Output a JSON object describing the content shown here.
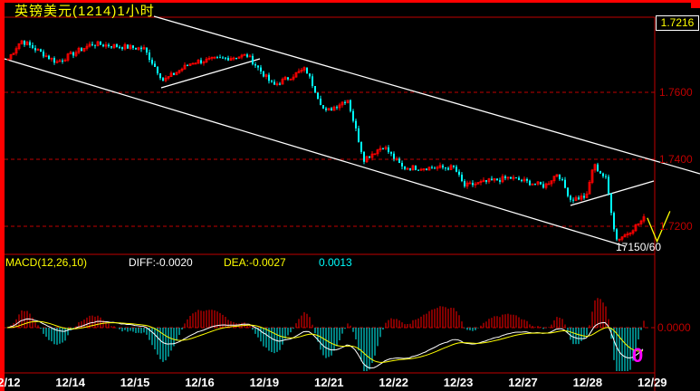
{
  "header": {
    "title": "英镑美元(1214)1小时",
    "last_price": "1.7216"
  },
  "colors": {
    "up": "#ff0000",
    "down": "#00ffff",
    "grid": "#c00000",
    "dea": "#ffff00",
    "diff": "#ffffff",
    "annotation": "#ff00ff"
  },
  "macd": {
    "label": "MACD(12,26,10)",
    "diff": "DIFF:-0.0020",
    "dea": "DEA:-0.0027",
    "macd": "0.0013",
    "zero_label": "0.0000"
  },
  "annotation": {
    "low_label": "17150/60",
    "circle_label": "0"
  },
  "chart_data": {
    "type": "candlestick",
    "title": "英镑美元(1214)1小时",
    "y_ticks": [
      "1.7600",
      "1.7400",
      "1.7200"
    ],
    "y_tick_values": [
      1.76,
      1.74,
      1.72
    ],
    "ylim": [
      1.7113,
      1.7827
    ],
    "x_tick_labels": [
      "12/12",
      "12/14",
      "12/15",
      "12/16",
      "12/19",
      "12/21",
      "12/22",
      "12/23",
      "12/27",
      "12/28",
      "12/29"
    ],
    "grid": true,
    "price_path": {
      "day": [
        0,
        0.2,
        0.75,
        1.3,
        2.1,
        2.4,
        2.85,
        3.7,
        4.1,
        4.6,
        4.9,
        5.25,
        5.5,
        5.8,
        6.1,
        6.9,
        7.05,
        7.75,
        8.3,
        8.5,
        8.7,
        8.95,
        9.05,
        9.25,
        9.4,
        9.55,
        9.85
      ],
      "close": [
        1.77,
        1.7755,
        1.769,
        1.7745,
        1.773,
        1.7635,
        1.769,
        1.771,
        1.762,
        1.767,
        1.754,
        1.758,
        1.74,
        1.744,
        1.7375,
        1.7375,
        1.732,
        1.7345,
        1.732,
        1.736,
        1.728,
        1.729,
        1.7385,
        1.734,
        1.716,
        1.7175,
        1.7225
      ]
    },
    "forecast_path": {
      "day": [
        9.9,
        10.05,
        10.25
      ],
      "close": [
        1.7225,
        1.7155,
        1.7245
      ]
    }
  }
}
